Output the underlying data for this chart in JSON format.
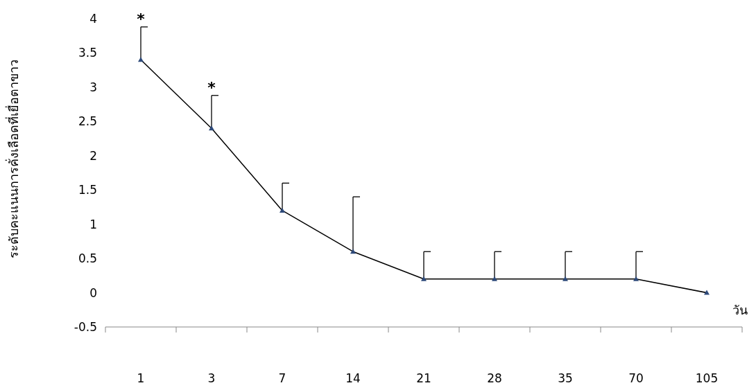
{
  "chart_data": {
    "type": "line",
    "ylabel": "ระดับคะแนนการคั่งเลือดที่เยื่อตาขาว",
    "xlabel": "วัน",
    "categories": [
      "1",
      "3",
      "7",
      "14",
      "21",
      "28",
      "35",
      "70",
      "105"
    ],
    "series": [
      {
        "color": "#000000",
        "values": [
          3.4,
          2.4,
          1.2,
          0.6,
          0.2,
          0.2,
          0.2,
          0.2,
          0
        ],
        "errors": [
          [
            3.4,
            3.88
          ],
          [
            2.4,
            2.88
          ],
          [
            1.2,
            1.6
          ],
          [
            0.6,
            1.4
          ],
          [
            0.2,
            0.6
          ],
          [
            0.2,
            0.6
          ],
          [
            0.2,
            0.6
          ],
          [
            0.2,
            0.6
          ],
          null
        ]
      }
    ],
    "marker": "triangle",
    "ylim": [
      -0.5,
      4
    ],
    "yticks": [
      -0.5,
      0,
      0.5,
      1,
      1.5,
      2,
      2.5,
      3,
      3.5,
      4
    ],
    "annotations": [
      {
        "text": "*",
        "x": "1",
        "y": 3.88
      },
      {
        "text": "*",
        "x": "3",
        "y": 2.88
      }
    ],
    "grid": false
  }
}
